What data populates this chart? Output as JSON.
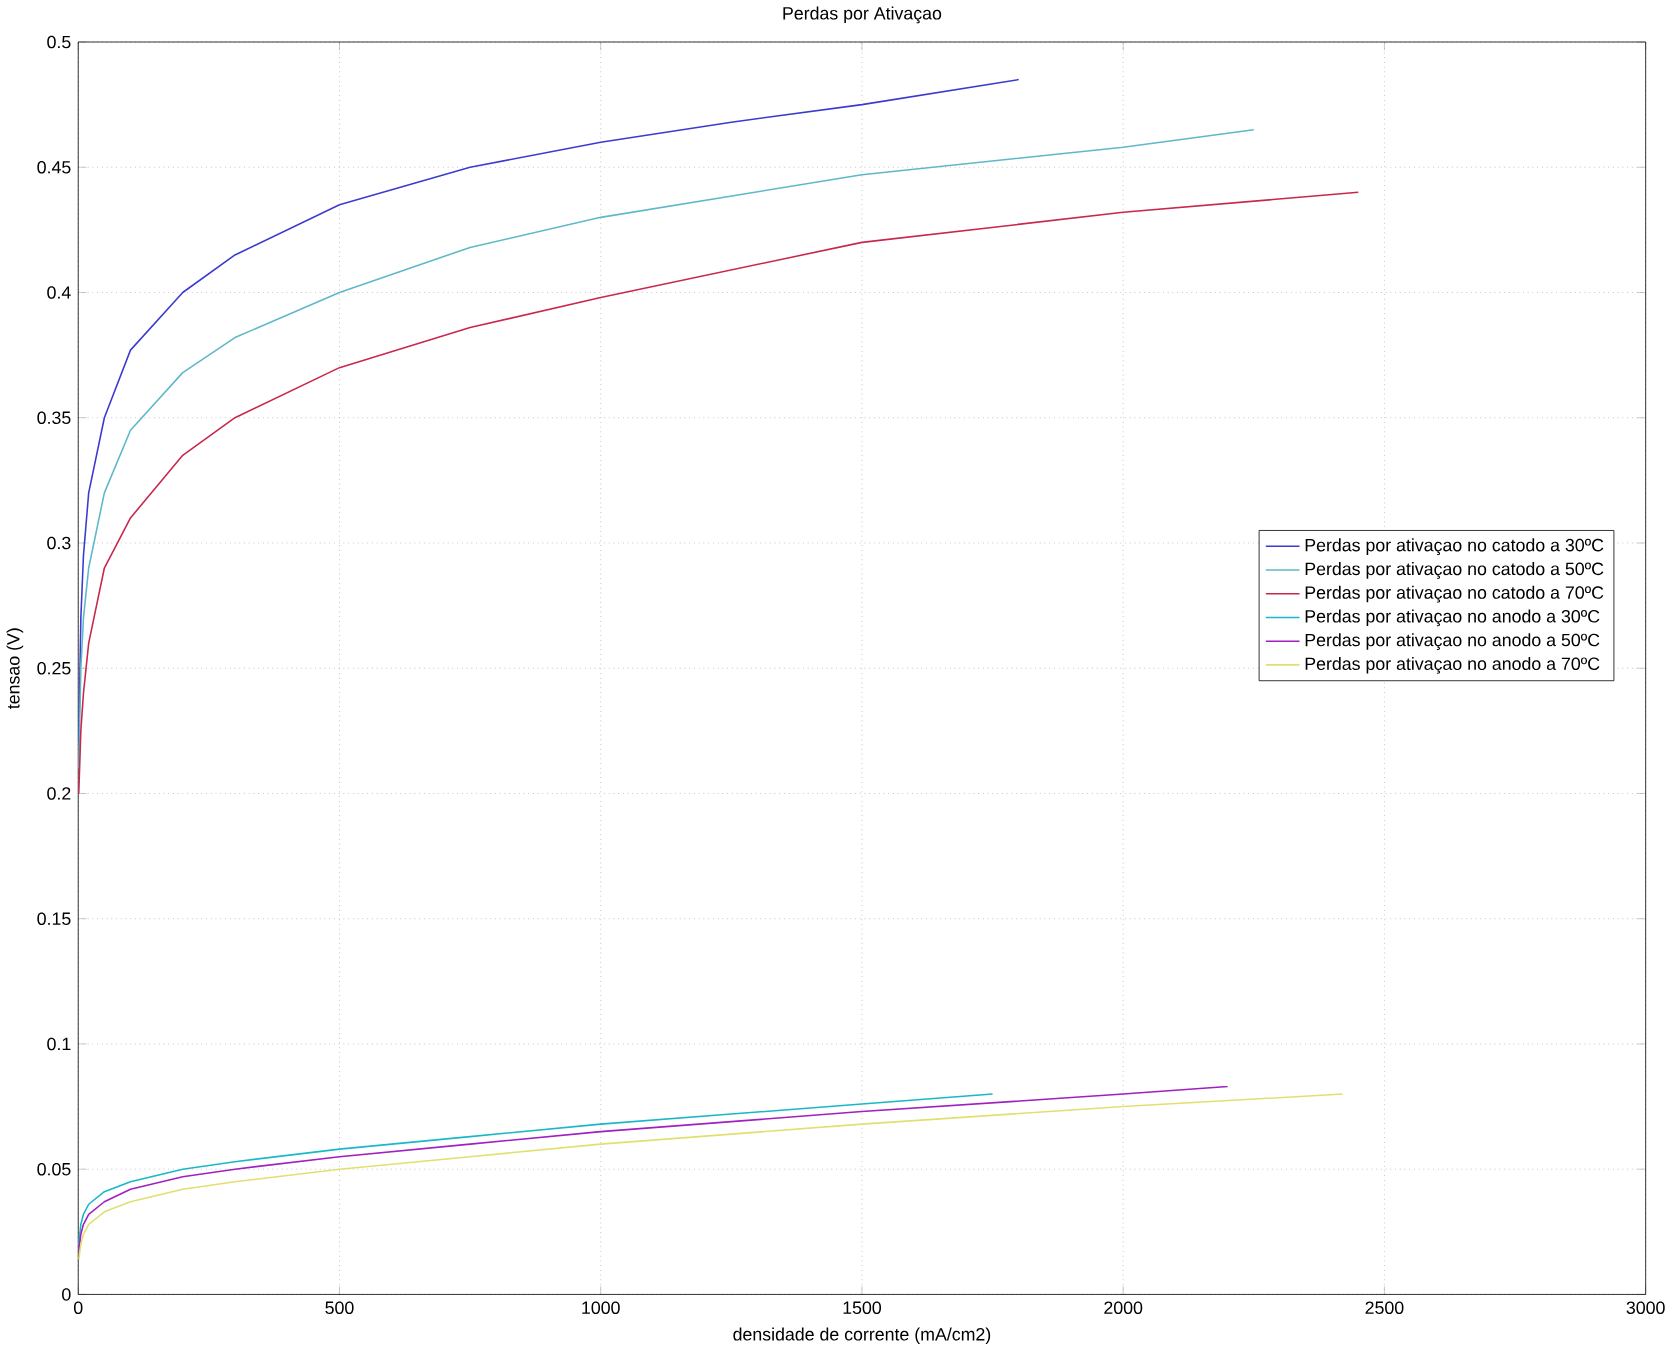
{
  "chart_data": {
    "type": "line",
    "title": "Perdas por Ativaçao",
    "xlabel": "densidade de corrente (mA/cm2)",
    "ylabel": "tensao (V)",
    "xlim": [
      0,
      3000
    ],
    "ylim": [
      0,
      0.5
    ],
    "xticks": [
      0,
      500,
      1000,
      1500,
      2000,
      2500,
      3000
    ],
    "yticks": [
      0,
      0.05,
      0.1,
      0.15,
      0.2,
      0.25,
      0.3,
      0.35,
      0.4,
      0.45,
      0.5
    ],
    "grid": true,
    "legend": "right",
    "marker": "none",
    "line_style": "solid",
    "series": [
      {
        "name": "Perdas por ativaçao no catodo a 30ºC",
        "color": "#3b3bd0",
        "x": [
          1,
          5,
          10,
          20,
          50,
          100,
          200,
          300,
          500,
          750,
          1000,
          1250,
          1500,
          1800
        ],
        "values": [
          0.22,
          0.27,
          0.295,
          0.32,
          0.35,
          0.377,
          0.4,
          0.415,
          0.435,
          0.45,
          0.46,
          0.468,
          0.475,
          0.485
        ]
      },
      {
        "name": "Perdas por ativaçao no catodo a 50ºC",
        "color": "#5fb8c8",
        "x": [
          1,
          5,
          10,
          20,
          50,
          100,
          200,
          300,
          500,
          750,
          1000,
          1500,
          2000,
          2250
        ],
        "values": [
          0.21,
          0.25,
          0.27,
          0.29,
          0.32,
          0.345,
          0.368,
          0.382,
          0.4,
          0.418,
          0.43,
          0.447,
          0.458,
          0.465
        ]
      },
      {
        "name": "Perdas por ativaçao no catodo a 70ºC",
        "color": "#c8284c",
        "x": [
          1,
          5,
          10,
          20,
          50,
          100,
          200,
          300,
          500,
          750,
          1000,
          1500,
          2000,
          2450
        ],
        "values": [
          0.2,
          0.225,
          0.24,
          0.26,
          0.29,
          0.31,
          0.335,
          0.35,
          0.37,
          0.386,
          0.398,
          0.42,
          0.432,
          0.44
        ]
      },
      {
        "name": "Perdas por ativaçao no anodo a 30ºC",
        "color": "#19b8c8",
        "x": [
          1,
          5,
          10,
          20,
          50,
          100,
          200,
          300,
          500,
          750,
          1000,
          1250,
          1500,
          1750
        ],
        "values": [
          0.02,
          0.028,
          0.032,
          0.036,
          0.041,
          0.045,
          0.05,
          0.053,
          0.058,
          0.063,
          0.068,
          0.072,
          0.076,
          0.08
        ]
      },
      {
        "name": "Perdas por ativaçao no anodo a 50ºC",
        "color": "#a020c0",
        "x": [
          1,
          5,
          10,
          20,
          50,
          100,
          200,
          300,
          500,
          750,
          1000,
          1500,
          2000,
          2200
        ],
        "values": [
          0.017,
          0.024,
          0.028,
          0.032,
          0.037,
          0.042,
          0.047,
          0.05,
          0.055,
          0.06,
          0.065,
          0.073,
          0.08,
          0.083
        ]
      },
      {
        "name": "Perdas por ativaçao no anodo a 70ºC",
        "color": "#e0e070",
        "x": [
          1,
          5,
          10,
          20,
          50,
          100,
          200,
          300,
          500,
          750,
          1000,
          1500,
          2000,
          2420
        ],
        "values": [
          0.014,
          0.02,
          0.024,
          0.028,
          0.033,
          0.037,
          0.042,
          0.045,
          0.05,
          0.055,
          0.06,
          0.068,
          0.075,
          0.08
        ]
      }
    ]
  }
}
